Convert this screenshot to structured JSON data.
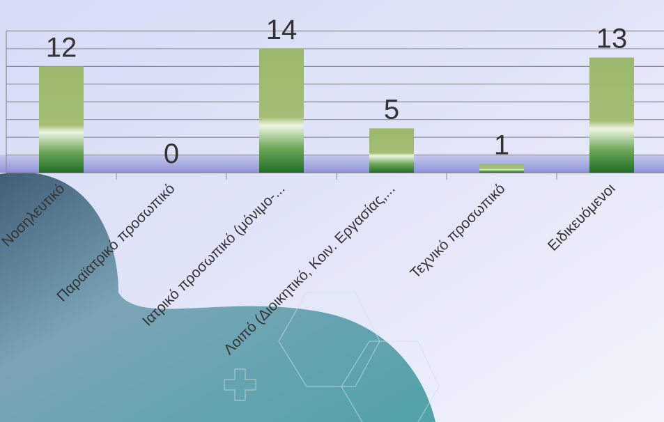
{
  "chart_data": {
    "type": "bar",
    "categories": [
      "Νοσηλευτικό",
      "Παραϊατρικό προσωπικό",
      "Ιατρικό προσωπικό (μόνιμο-...",
      "Λοιπό (Διοικητικό, Κοιν. Εργασίας,...",
      "Τεχνικό προσωπικό",
      "Ειδικευόμενοι"
    ],
    "values": [
      12,
      0,
      14,
      5,
      1,
      13
    ],
    "ylim": [
      0,
      16
    ],
    "yticks": [
      0,
      2,
      4,
      6,
      8,
      10,
      12,
      14,
      16
    ],
    "grid": true
  }
}
